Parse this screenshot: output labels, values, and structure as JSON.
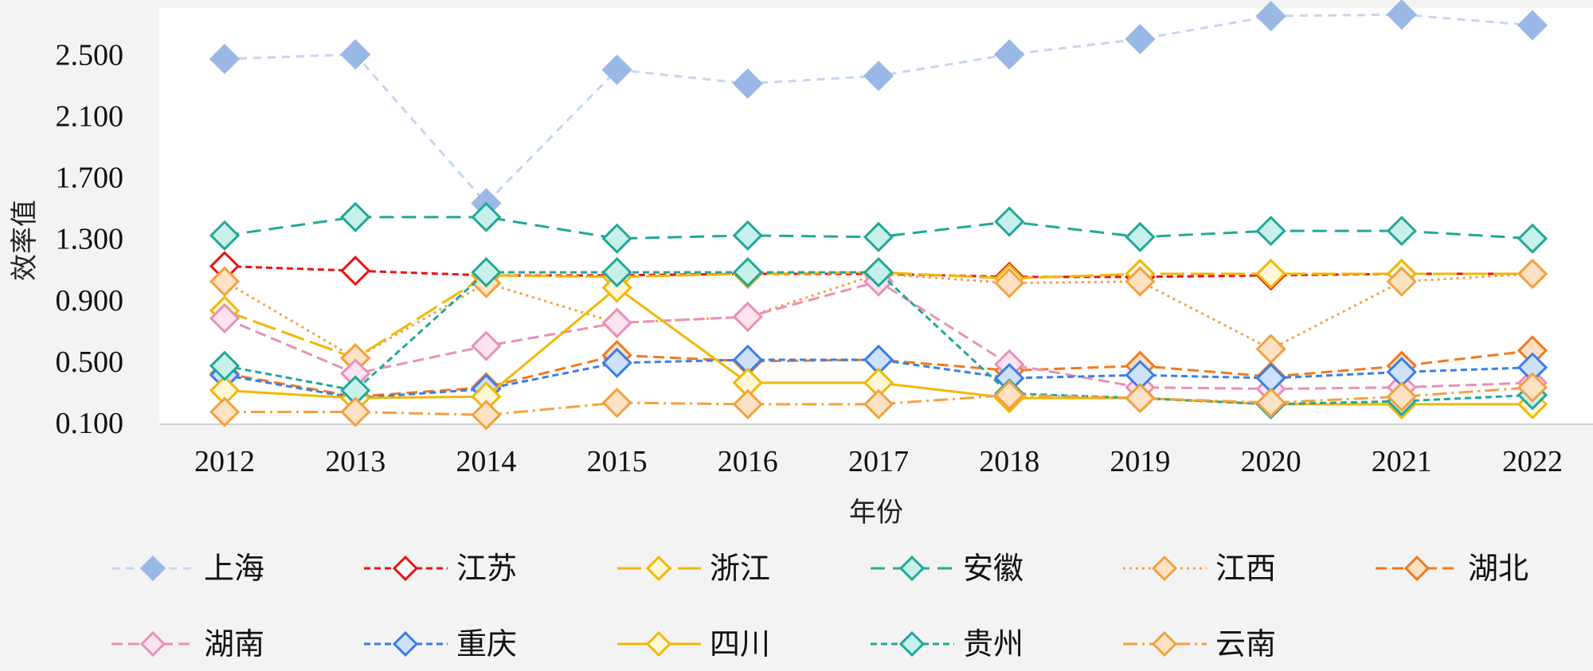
{
  "chart_data": {
    "type": "line",
    "xlabel": "年份",
    "ylabel": "效率值",
    "categories": [
      "2012",
      "2013",
      "2014",
      "2015",
      "2016",
      "2017",
      "2018",
      "2019",
      "2020",
      "2021",
      "2022"
    ],
    "yticks": [
      "0.100",
      "0.500",
      "0.900",
      "1.300",
      "1.700",
      "2.100",
      "2.500"
    ],
    "ylim": [
      0.1,
      2.77
    ],
    "grid": false,
    "legend_position": "bottom",
    "series": [
      {
        "name": "上海",
        "color": "#c5d5ee",
        "marker_fill": "#9ab8e6",
        "marker_stroke": "#9ab8e6",
        "dash": "10,8",
        "values": [
          2.47,
          2.5,
          1.53,
          2.4,
          2.31,
          2.36,
          2.5,
          2.6,
          2.75,
          2.76,
          2.69
        ]
      },
      {
        "name": "江苏",
        "color": "#ee1111",
        "marker_fill": "#ffffff",
        "marker_stroke": "#ee1111",
        "dash": "8,5",
        "values": [
          1.12,
          1.09,
          1.06,
          1.06,
          1.07,
          1.07,
          1.05,
          1.05,
          1.06,
          1.07,
          1.07
        ]
      },
      {
        "name": "浙江",
        "color": "#f2b705",
        "marker_fill": "#fff7d6",
        "marker_stroke": "#f2b705",
        "dash": "30,8",
        "values": [
          0.83,
          0.52,
          1.06,
          1.05,
          1.07,
          1.08,
          1.04,
          1.07,
          1.07,
          1.07,
          1.07
        ]
      },
      {
        "name": "安徽",
        "color": "#20a898",
        "marker_fill": "#c8f0ea",
        "marker_stroke": "#20a898",
        "dash": "18,10",
        "values": [
          1.32,
          1.44,
          1.44,
          1.3,
          1.32,
          1.31,
          1.41,
          1.31,
          1.35,
          1.35,
          1.3
        ]
      },
      {
        "name": "江西",
        "color": "#f5a040",
        "marker_fill": "#fde3c4",
        "marker_stroke": "#f5a040",
        "dash": "3,5",
        "values": [
          1.02,
          0.52,
          1.01,
          0.75,
          0.79,
          1.07,
          1.01,
          1.02,
          0.58,
          1.02,
          1.07
        ]
      },
      {
        "name": "湖北",
        "color": "#f07a20",
        "marker_fill": "#fde0c4",
        "marker_stroke": "#f07a20",
        "dash": "14,7",
        "values": [
          0.42,
          0.27,
          0.33,
          0.54,
          0.5,
          0.51,
          0.44,
          0.47,
          0.4,
          0.47,
          0.57
        ]
      },
      {
        "name": "湖南",
        "color": "#e890b8",
        "marker_fill": "#fde4ef",
        "marker_stroke": "#e890b8",
        "dash": "14,7",
        "values": [
          0.78,
          0.42,
          0.6,
          0.75,
          0.79,
          1.02,
          0.48,
          0.33,
          0.32,
          0.33,
          0.36
        ]
      },
      {
        "name": "重庆",
        "color": "#3a7ee8",
        "marker_fill": "#cfe0fa",
        "marker_stroke": "#3a7ee8",
        "dash": "8,5",
        "values": [
          0.41,
          0.26,
          0.32,
          0.49,
          0.51,
          0.51,
          0.39,
          0.41,
          0.39,
          0.43,
          0.46
        ]
      },
      {
        "name": "四川",
        "color": "#f2b705",
        "marker_fill": "#fff7d6",
        "marker_stroke": "#f2b705",
        "dash": "",
        "values": [
          0.31,
          0.26,
          0.27,
          0.98,
          0.36,
          0.36,
          0.26,
          0.26,
          0.22,
          0.22,
          0.22
        ]
      },
      {
        "name": "贵州",
        "color": "#20a898",
        "marker_fill": "#c8f0ea",
        "marker_stroke": "#20a898",
        "dash": "8,5",
        "values": [
          0.47,
          0.31,
          1.08,
          1.08,
          1.08,
          1.08,
          0.29,
          0.26,
          0.22,
          0.24,
          0.28
        ]
      },
      {
        "name": "云南",
        "color": "#f5a040",
        "marker_fill": "#fde3c4",
        "marker_stroke": "#f5a040",
        "dash": "18,6,3,6",
        "values": [
          0.17,
          0.17,
          0.15,
          0.23,
          0.22,
          0.22,
          0.28,
          0.26,
          0.23,
          0.27,
          0.33
        ]
      }
    ]
  }
}
